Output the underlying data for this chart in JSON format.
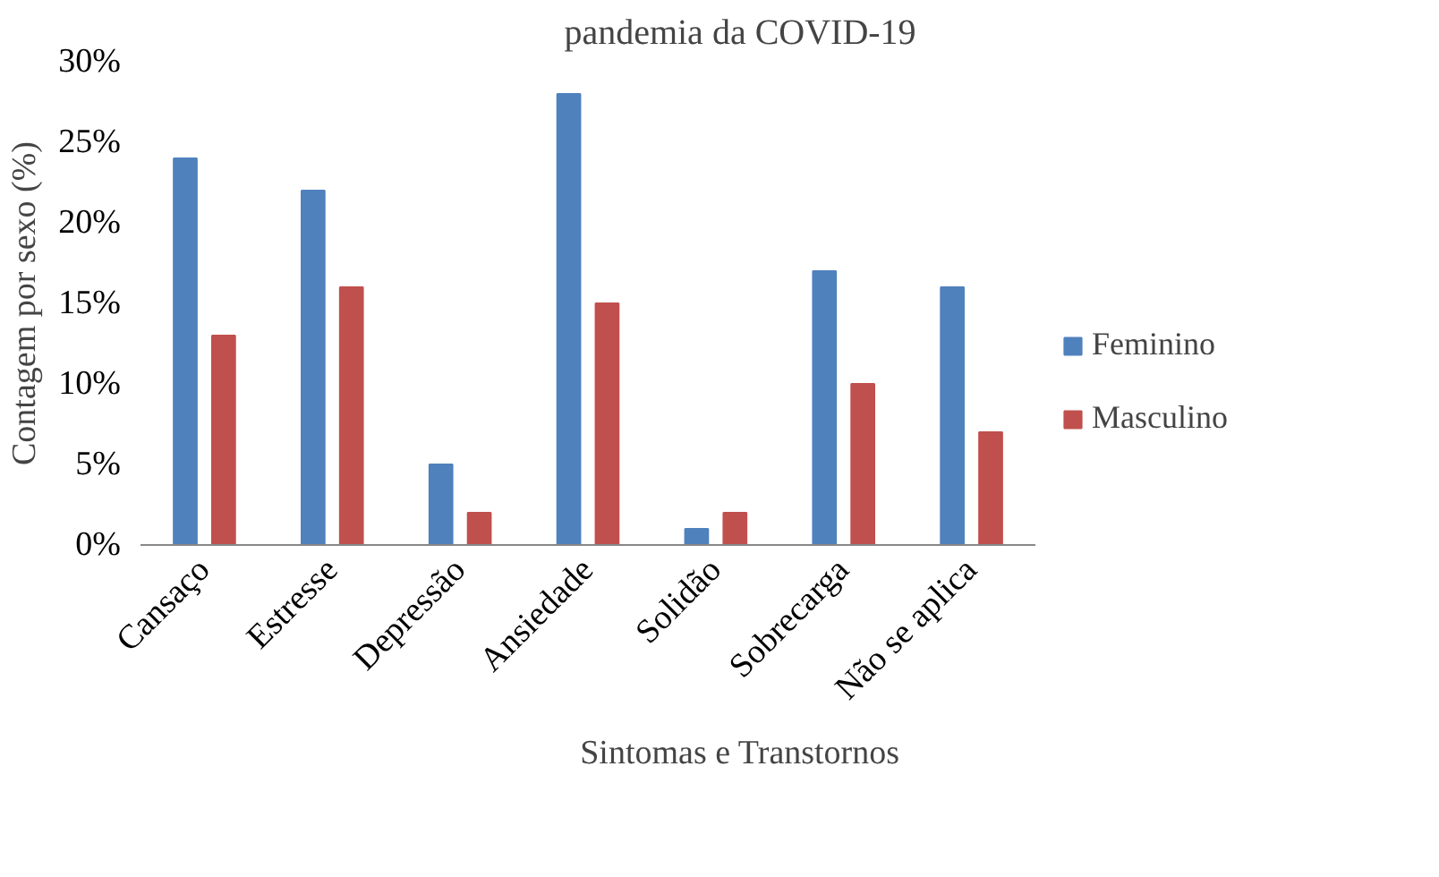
{
  "chart_data": {
    "type": "bar",
    "title": "pandemia da COVID-19",
    "xlabel": "Sintomas e Transtornos",
    "ylabel": "Contagem por sexo (%)",
    "categories": [
      "Cansaço",
      "Estresse",
      "Depressão",
      "Ansiedade",
      "Solidão",
      "Sobrecarga",
      "Não se aplica"
    ],
    "series": [
      {
        "name": "Feminino",
        "color": "#4f81bd",
        "values": [
          24,
          22,
          5,
          28,
          1,
          17,
          16
        ]
      },
      {
        "name": "Masculino",
        "color": "#c0504d",
        "values": [
          13,
          16,
          2,
          15,
          2,
          10,
          7
        ]
      }
    ],
    "ylim": [
      0,
      30
    ],
    "yticks": [
      {
        "value": 0,
        "label": "0%"
      },
      {
        "value": 5,
        "label": "5%"
      },
      {
        "value": 10,
        "label": "10%"
      },
      {
        "value": 15,
        "label": "15%"
      },
      {
        "value": 20,
        "label": "20%"
      },
      {
        "value": 25,
        "label": "25%"
      },
      {
        "value": 30,
        "label": "30%"
      }
    ],
    "grid": false,
    "legend": "right"
  }
}
